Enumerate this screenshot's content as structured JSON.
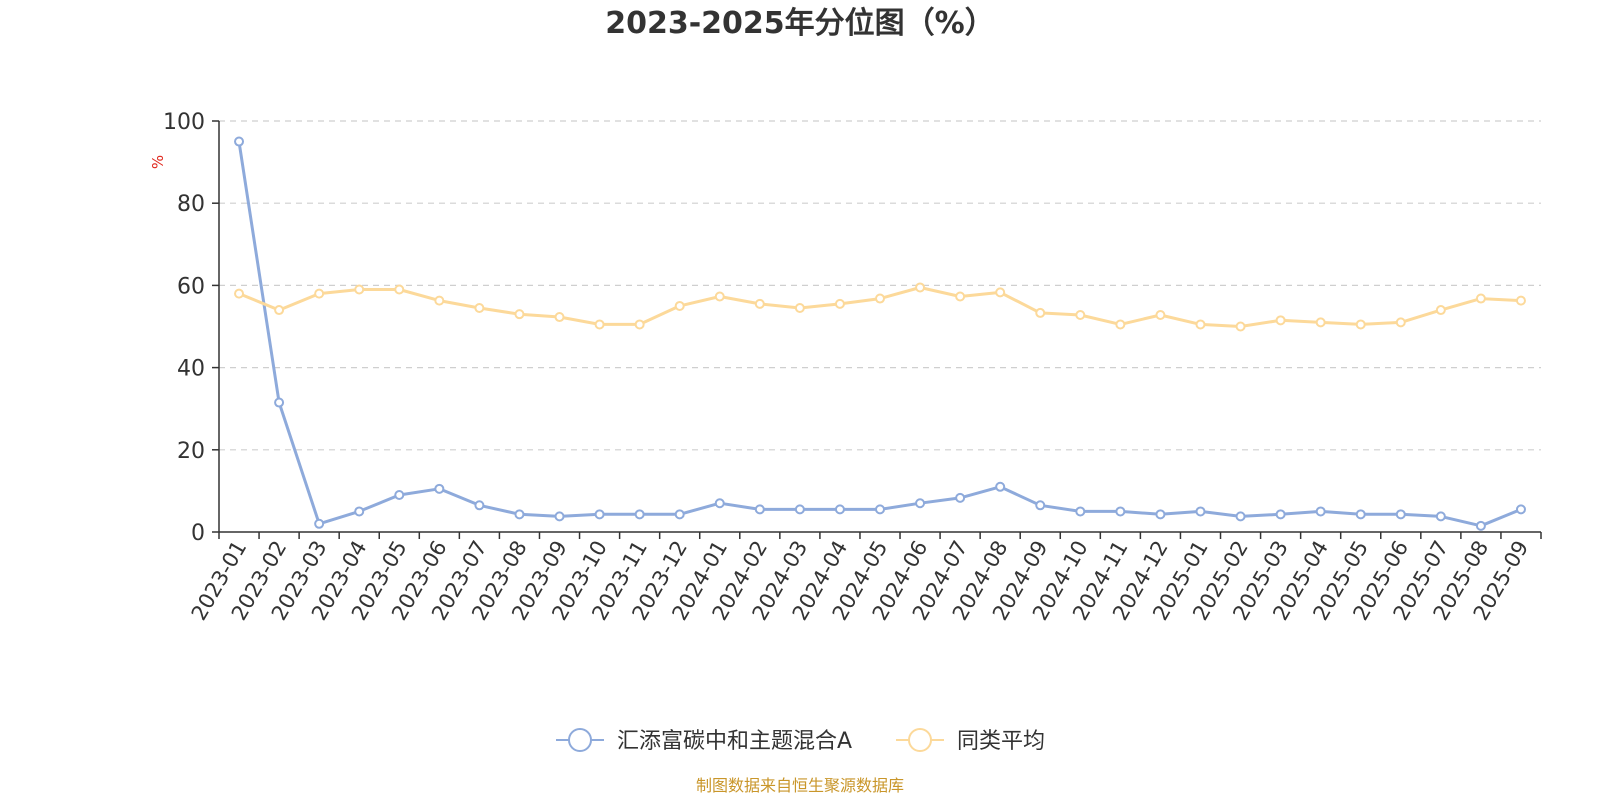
{
  "source_note": "制图数据来自恒生聚源数据库",
  "chart_data": {
    "type": "line",
    "title": "2023-2025年分位图（%）",
    "ylabel": "%",
    "xlabel": "",
    "ylim": [
      0,
      100
    ],
    "yticks": [
      0,
      20,
      40,
      60,
      80,
      100
    ],
    "grid": true,
    "legend_position": "bottom",
    "categories": [
      "2023-01",
      "2023-02",
      "2023-03",
      "2023-04",
      "2023-05",
      "2023-06",
      "2023-07",
      "2023-08",
      "2023-09",
      "2023-10",
      "2023-11",
      "2023-12",
      "2024-01",
      "2024-02",
      "2024-03",
      "2024-04",
      "2024-05",
      "2024-06",
      "2024-07",
      "2024-08",
      "2024-09",
      "2024-10",
      "2024-11",
      "2024-12",
      "2025-01",
      "2025-02",
      "2025-03",
      "2025-04",
      "2025-05",
      "2025-06",
      "2025-07",
      "2025-08",
      "2025-09"
    ],
    "series": [
      {
        "name": "汇添富碳中和主题混合A",
        "color": "#8eaadb",
        "values": [
          95,
          31.5,
          2,
          5,
          9,
          10.5,
          6.5,
          4.3,
          3.8,
          4.3,
          4.3,
          4.3,
          7,
          5.5,
          5.5,
          5.5,
          5.5,
          7,
          8.3,
          11,
          6.5,
          5,
          5,
          4.3,
          5,
          3.8,
          4.3,
          5,
          4.3,
          4.3,
          3.8,
          1.5,
          5.5
        ]
      },
      {
        "name": "同类平均",
        "color": "#fcd99a",
        "values": [
          58,
          54,
          58,
          59,
          59,
          56.3,
          54.5,
          53,
          52.3,
          50.5,
          50.5,
          55,
          57.3,
          55.5,
          54.5,
          55.5,
          56.8,
          59.5,
          57.3,
          58.3,
          53.3,
          52.8,
          50.5,
          52.8,
          50.5,
          50,
          51.5,
          51,
          50.5,
          51,
          54,
          56.8,
          56.3
        ]
      }
    ]
  }
}
